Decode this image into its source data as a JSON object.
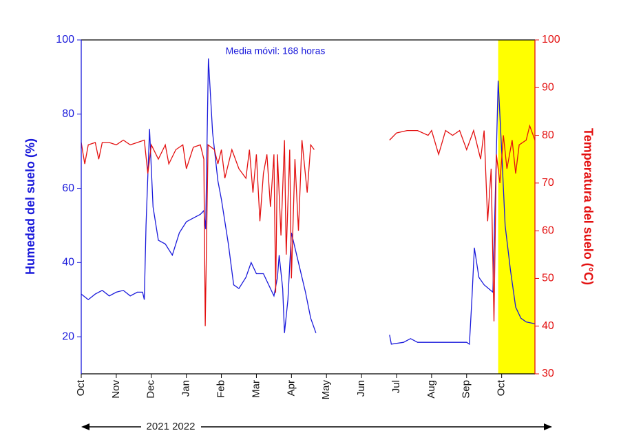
{
  "chart_data": {
    "type": "line",
    "annotation": "Media móvil: 168 horas",
    "period_label": "2021 2022",
    "y_label": "Humedad del suelo (%)",
    "y2_label": "Temperatura del suelo (°C)",
    "xlim": [
      0,
      12.95
    ],
    "xticks": [
      {
        "value": 0,
        "label": "Oct"
      },
      {
        "value": 1,
        "label": "Nov"
      },
      {
        "value": 2,
        "label": "Dec"
      },
      {
        "value": 3,
        "label": "Jan"
      },
      {
        "value": 4,
        "label": "Feb"
      },
      {
        "value": 5,
        "label": "Mar"
      },
      {
        "value": 6,
        "label": "Apr"
      },
      {
        "value": 7,
        "label": "May"
      },
      {
        "value": 8,
        "label": "Jun"
      },
      {
        "value": 9,
        "label": "Jul"
      },
      {
        "value": 10,
        "label": "Aug"
      },
      {
        "value": 11,
        "label": "Sep"
      },
      {
        "value": 12,
        "label": "Oct"
      }
    ],
    "ylim": [
      10,
      100
    ],
    "yticks": [
      20,
      40,
      60,
      80,
      100
    ],
    "y2lim": [
      30,
      100
    ],
    "y2ticks": [
      30,
      40,
      50,
      60,
      70,
      80,
      90,
      100
    ],
    "y_color": "#1a1adb",
    "y2_color": "#e31010",
    "highlight": {
      "xrange": [
        11.9,
        12.95
      ],
      "color": "#ffff00"
    },
    "series": [
      {
        "color": "#1a1adb",
        "axis": "y",
        "x": [
          0,
          0.2,
          0.4,
          0.6,
          0.8,
          1.0,
          1.2,
          1.4,
          1.6,
          1.75,
          1.8,
          1.85,
          1.95,
          2.05,
          2.2,
          2.4,
          2.6,
          2.8,
          3.0,
          3.2,
          3.4,
          3.5,
          3.55,
          3.63,
          3.75,
          3.9,
          4.0,
          4.2,
          4.35,
          4.5,
          4.7,
          4.85,
          5.0,
          5.2,
          5.4,
          5.5,
          5.6,
          5.65,
          5.75,
          5.8,
          5.9,
          6.0,
          6.2,
          6.4,
          6.55,
          6.7,
          7.5,
          8.8,
          8.85,
          9.2,
          9.4,
          9.6,
          10.0,
          10.5,
          11.0,
          11.08,
          11.15,
          11.22,
          11.35,
          11.5,
          11.75,
          11.85,
          11.9,
          12.0,
          12.1,
          12.25,
          12.4,
          12.55,
          12.7,
          12.95
        ],
        "values": [
          31.5,
          30,
          31.5,
          32.5,
          31,
          32,
          32.5,
          31,
          32,
          32,
          30,
          50,
          76,
          55,
          46,
          45,
          42,
          48,
          51,
          52,
          53,
          54,
          49,
          95,
          75,
          62,
          57,
          45,
          34,
          33,
          36,
          40,
          37,
          37,
          33,
          31,
          36,
          42,
          33,
          21,
          30,
          48,
          40,
          32,
          25,
          21,
          null,
          20.5,
          18,
          18.5,
          19.5,
          18.5,
          18.5,
          18.5,
          18.5,
          18,
          30,
          44,
          36,
          34,
          32,
          70,
          89,
          70,
          50,
          38,
          28,
          25,
          24,
          23.5
        ]
      },
      {
        "color": "#e31010",
        "axis": "y2",
        "x": [
          0,
          0.1,
          0.2,
          0.4,
          0.5,
          0.6,
          0.8,
          1.0,
          1.2,
          1.4,
          1.6,
          1.8,
          1.9,
          2.0,
          2.2,
          2.4,
          2.5,
          2.7,
          2.9,
          3.0,
          3.2,
          3.4,
          3.5,
          3.54,
          3.62,
          3.8,
          3.9,
          4.0,
          4.1,
          4.3,
          4.5,
          4.7,
          4.8,
          4.9,
          5.0,
          5.1,
          5.2,
          5.3,
          5.4,
          5.5,
          5.55,
          5.6,
          5.7,
          5.8,
          5.85,
          5.95,
          6.0,
          6.1,
          6.2,
          6.3,
          6.45,
          6.55,
          6.65,
          7.5,
          8.8,
          9.0,
          9.3,
          9.6,
          9.9,
          10.0,
          10.2,
          10.4,
          10.6,
          10.8,
          11.0,
          11.2,
          11.4,
          11.5,
          11.6,
          11.7,
          11.78,
          11.85,
          11.95,
          12.05,
          12.15,
          12.3,
          12.4,
          12.5,
          12.7,
          12.8,
          12.95
        ],
        "values": [
          78.5,
          74,
          78,
          78.5,
          75,
          78.5,
          78.5,
          78,
          79,
          78,
          78.5,
          79,
          72,
          78,
          75,
          78,
          74,
          77,
          78,
          73,
          77.5,
          78,
          75,
          40,
          78,
          77,
          74,
          77,
          71,
          77,
          73,
          71,
          77,
          68,
          76,
          62,
          72,
          76,
          65,
          76,
          47,
          76,
          59,
          79,
          55,
          77,
          50,
          75,
          60,
          79,
          68,
          78,
          77,
          null,
          79,
          80.5,
          81,
          81,
          80,
          81,
          76,
          81,
          80,
          81,
          77,
          81,
          75,
          81,
          62,
          73,
          41,
          76,
          70,
          80,
          73,
          79,
          72,
          78,
          79,
          82,
          79
        ]
      }
    ]
  }
}
